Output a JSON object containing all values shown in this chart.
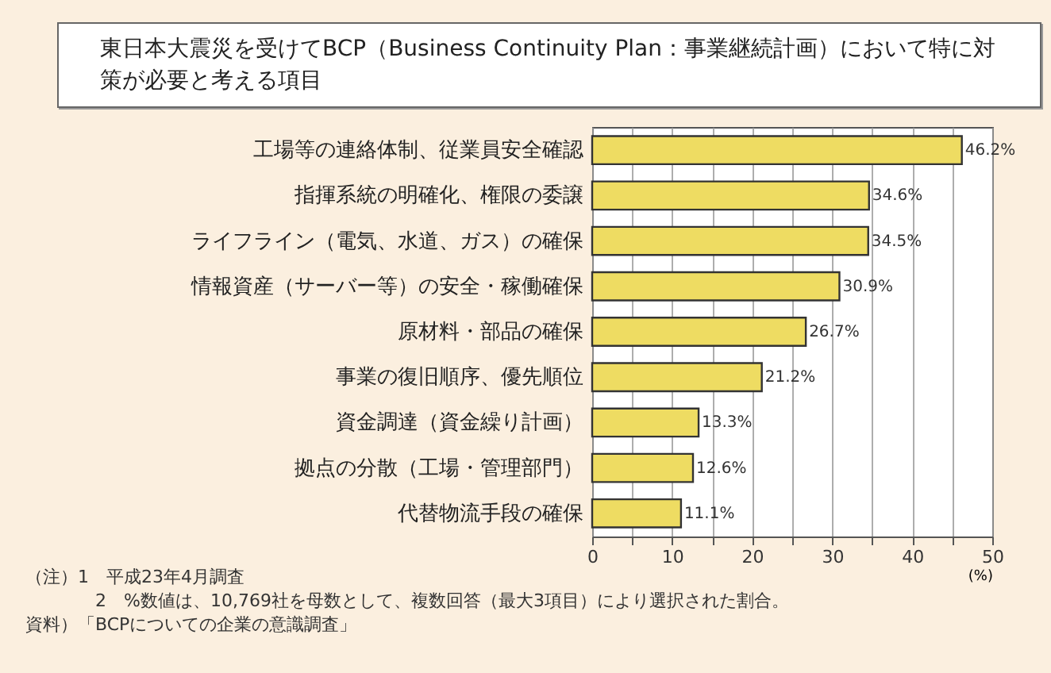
{
  "chart_data": {
    "type": "bar",
    "orientation": "horizontal",
    "title": "東日本大震災を受けてBCP（Business Continuity Plan：事業継続計画）において特に対策が必要と考える項目",
    "categories": [
      "工場等の連絡体制、従業員安全確認",
      "指揮系統の明確化、権限の委譲",
      "ライフライン（電気、水道、ガス）の確保",
      "情報資産（サーバー等）の安全・稼働確保",
      "原材料・部品の確保",
      "事業の復旧順序、優先順位",
      "資金調達（資金繰り計画）",
      "拠点の分散（工場・管理部門）",
      "代替物流手段の確保"
    ],
    "values": [
      46.2,
      34.6,
      34.5,
      30.9,
      26.7,
      21.2,
      13.3,
      12.6,
      11.1
    ],
    "value_labels": [
      "46.2%",
      "34.6%",
      "34.5%",
      "30.9%",
      "26.7%",
      "21.2%",
      "13.3%",
      "12.6%",
      "11.1%"
    ],
    "color": "#eedc62",
    "xlim": [
      0,
      50
    ],
    "xticks": [
      0,
      {
        "value": 5,
        "label": null
      },
      10,
      {
        "value": 15,
        "label": null
      },
      20,
      {
        "value": 25,
        "label": null
      },
      30,
      {
        "value": 35,
        "label": null
      },
      40,
      {
        "value": 45,
        "label": null
      },
      50
    ],
    "xlabel": "(%)",
    "grid": "x",
    "annotations": [
      "（注）1　平成23年4月調査",
      "2　%数値は、10,769社を母数として、複数回答（最大3項目）により選択された割合。",
      "資料）「BCPについての企業の意識調査」"
    ]
  }
}
